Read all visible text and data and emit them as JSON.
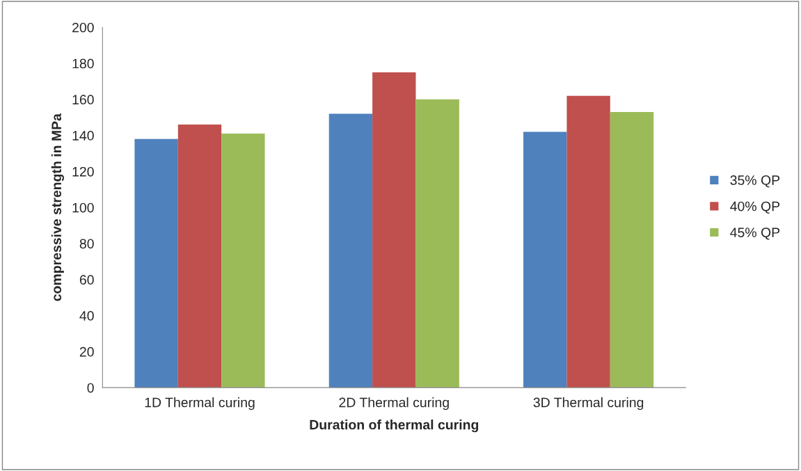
{
  "chart_data": {
    "type": "bar",
    "xlabel": "Duration of thermal curing",
    "ylabel": "compressive strength in MPa",
    "categories": [
      "1D Thermal curing",
      "2D Thermal curing",
      "3D Thermal curing"
    ],
    "series": [
      {
        "name": "35% QP",
        "color": "#4f81bd",
        "values": [
          138,
          152,
          142
        ]
      },
      {
        "name": "40% QP",
        "color": "#c0504d",
        "values": [
          146,
          175,
          162
        ]
      },
      {
        "name": "45% QP",
        "color": "#9bbb59",
        "values": [
          141,
          160,
          153
        ]
      }
    ],
    "ylim": [
      0,
      200
    ],
    "yticks": [
      0,
      20,
      40,
      60,
      80,
      100,
      120,
      140,
      160,
      180,
      200
    ],
    "grid": false,
    "legend": "right"
  }
}
